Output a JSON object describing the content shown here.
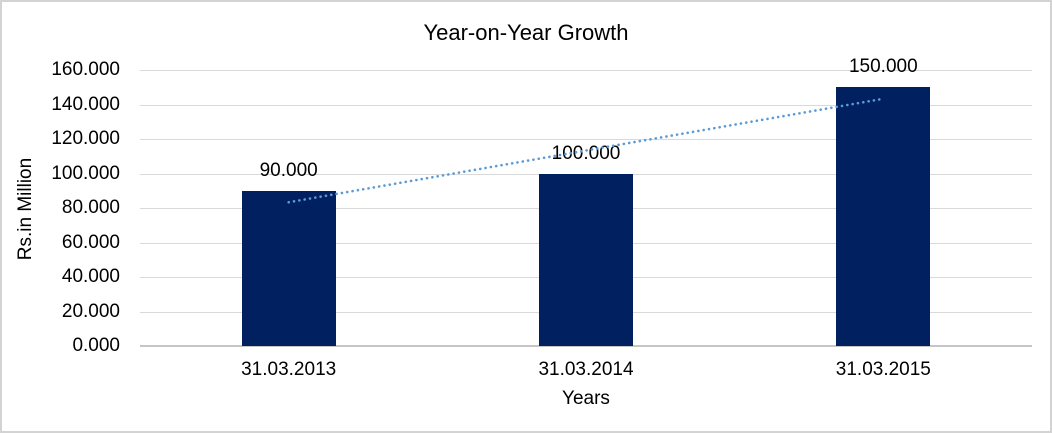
{
  "chart_data": {
    "type": "bar",
    "title": "Year-on-Year Growth",
    "xlabel": "Years",
    "ylabel": "Rs.in Million",
    "categories": [
      "31.03.2013",
      "31.03.2014",
      "31.03.2015"
    ],
    "values": [
      90,
      100,
      150
    ],
    "value_labels": [
      "90.000",
      "100.000",
      "150.000"
    ],
    "ylim": [
      0,
      160
    ],
    "ytick_step": 20,
    "ytick_labels": [
      "0.000",
      "20.000",
      "40.000",
      "60.000",
      "80.000",
      "100.000",
      "120.000",
      "140.000",
      "160.000"
    ],
    "grid": true,
    "legend": "none",
    "bar_color": "#002060",
    "gridline_color": "#d9d9d9",
    "trendline": {
      "type": "linear",
      "style": "dotted",
      "color": "#5b9bd5",
      "start_value": 83.333,
      "end_value": 143.333
    }
  }
}
